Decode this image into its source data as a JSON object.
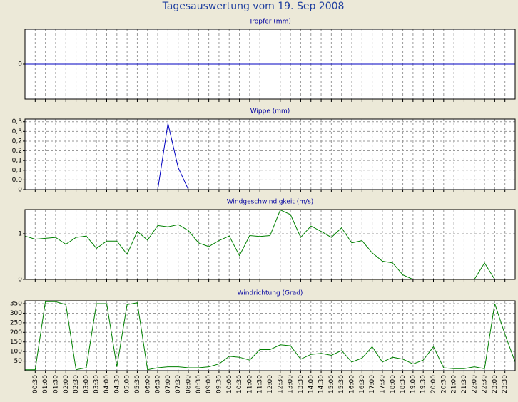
{
  "title": "Tagesauswertung vom 19. Sep 2008",
  "chart_data": [
    {
      "type": "line",
      "title": "Tropfer (mm)",
      "color": "#0000c0",
      "ylim": [
        -1,
        1
      ],
      "yticks": [
        0
      ],
      "grid": true,
      "values": [
        0,
        0,
        0,
        0,
        0,
        0,
        0,
        0,
        0,
        0,
        0,
        0,
        0,
        0,
        0,
        0,
        0,
        0,
        0,
        0,
        0,
        0,
        0,
        0,
        0,
        0,
        0,
        0,
        0,
        0,
        0,
        0,
        0,
        0,
        0,
        0,
        0,
        0,
        0,
        0,
        0,
        0,
        0,
        0,
        0,
        0,
        0,
        0,
        0
      ]
    },
    {
      "type": "line",
      "title": "Wippe (mm)",
      "color": "#0000c0",
      "ylim": [
        0,
        0.32
      ],
      "grid": true,
      "yticks": [
        0,
        {
          "value": 0.044,
          "label": "0,0"
        },
        {
          "value": 0.088,
          "label": "0,1"
        },
        {
          "value": 0.132,
          "label": "0,1"
        },
        {
          "value": 0.176,
          "label": "0,2"
        },
        {
          "value": 0.22,
          "label": "0,2"
        },
        {
          "value": 0.264,
          "label": "0,3"
        },
        {
          "value": 0.308,
          "label": "0,3"
        }
      ],
      "values": [
        0,
        0,
        0,
        0,
        0,
        0,
        0,
        0,
        0,
        0,
        0,
        0,
        0,
        0,
        0.3,
        0.1,
        0,
        0,
        0,
        0,
        0,
        0,
        0,
        0,
        0,
        0,
        0,
        0,
        0,
        0,
        0,
        0,
        0,
        0,
        0,
        0,
        0,
        0,
        0,
        0,
        0,
        0,
        0,
        0,
        0,
        0,
        0,
        0,
        0
      ]
    },
    {
      "type": "line",
      "title": "Windgeschwindigkeit (m/s)",
      "color": "#008000",
      "ylim": [
        0,
        1.53
      ],
      "yticks": [
        0,
        1
      ],
      "grid": true,
      "values": [
        0.95,
        0.88,
        0.9,
        0.92,
        0.77,
        0.92,
        0.95,
        0.68,
        0.84,
        0.84,
        0.55,
        1.05,
        0.86,
        1.18,
        1.15,
        1.2,
        1.07,
        0.8,
        0.72,
        0.85,
        0.95,
        0.52,
        0.96,
        0.94,
        0.96,
        1.52,
        1.42,
        0.92,
        1.17,
        1.05,
        0.92,
        1.13,
        0.8,
        0.85,
        0.58,
        0.4,
        0.36,
        0.1,
        0,
        0,
        0,
        0,
        0,
        0,
        0,
        0.36,
        0,
        0,
        0
      ]
    },
    {
      "type": "line",
      "title": "Windrichtung (Grad)",
      "color": "#008000",
      "ylim": [
        0,
        365
      ],
      "yticks": [
        50,
        100,
        150,
        200,
        250,
        300,
        350
      ],
      "grid": true,
      "categories": [
        null,
        "00:30",
        "01:00",
        "01:30",
        "02:00",
        "02:30",
        "03:00",
        "03:30",
        "04:00",
        "04:30",
        "05:00",
        "05:30",
        "06:00",
        "06:30",
        "07:00",
        "07:30",
        "08:00",
        "08:30",
        "09:00",
        "09:30",
        "10:00",
        "10:30",
        "11:00",
        "11:30",
        "12:00",
        "12:30",
        "13:00",
        "13:30",
        "14:00",
        "14:30",
        "15:00",
        "15:30",
        "16:00",
        "16:30",
        "17:00",
        "17:30",
        "18:00",
        "18:30",
        "19:00",
        "19:30",
        "20:00",
        "20:30",
        "21:00",
        "21:30",
        "22:00",
        "22:30",
        "23:00",
        "23:30",
        null
      ],
      "values": [
        5,
        5,
        360,
        360,
        345,
        5,
        15,
        350,
        350,
        20,
        345,
        355,
        5,
        15,
        20,
        20,
        15,
        15,
        20,
        35,
        75,
        70,
        55,
        110,
        110,
        135,
        130,
        60,
        85,
        90,
        80,
        105,
        45,
        65,
        125,
        45,
        70,
        60,
        35,
        55,
        125,
        15,
        10,
        10,
        20,
        10,
        350,
        190,
        45
      ]
    }
  ]
}
